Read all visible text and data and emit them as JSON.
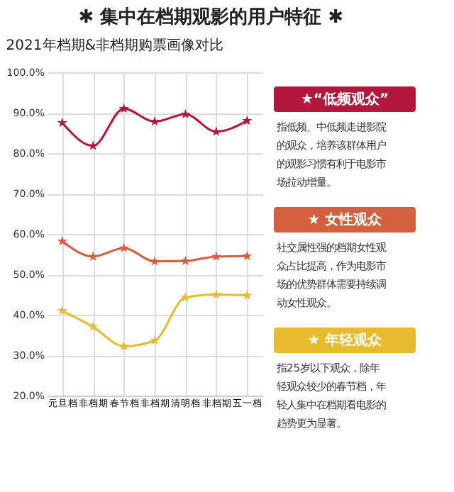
{
  "chart_data": {
    "type": "line",
    "title": "✱ 集中在档期观影的用户特征 ✱",
    "subtitle": "2021年档期&非档期购票画像对比",
    "categories": [
      "元旦档",
      "非档期",
      "春节档",
      "非档期",
      "清明档",
      "非档期",
      "五一档"
    ],
    "series": [
      {
        "name": "★“低频观众”",
        "color": "#b5173c",
        "values": [
          87.5,
          81.8,
          91.0,
          87.8,
          89.6,
          85.3,
          88.0
        ]
      },
      {
        "name": "★ 女性观众",
        "color": "#d2603c",
        "values": [
          58.2,
          54.4,
          56.5,
          53.2,
          53.3,
          54.4,
          54.5
        ]
      },
      {
        "name": "★ 年轻观众",
        "color": "#e8bb2c",
        "values": [
          41.0,
          37.0,
          32.2,
          33.6,
          44.3,
          45.0,
          44.8
        ]
      }
    ],
    "ylim": [
      20,
      100
    ],
    "yticks": [
      {
        "value": 20,
        "label": "20.0%"
      },
      {
        "value": 30,
        "label": "30.0%"
      },
      {
        "value": 40,
        "label": "40.0%"
      },
      {
        "value": 50,
        "label": "50.0%"
      },
      {
        "value": 60,
        "label": "60.0%"
      },
      {
        "value": 70,
        "label": "70.0%"
      },
      {
        "value": 80,
        "label": "80.0%"
      },
      {
        "value": 90,
        "label": "90.0%"
      },
      {
        "value": 100,
        "label": "100.0%"
      }
    ],
    "annotations": [
      "指低频、中低频走进影院的观众，培养该群体用户的观影习惯有利于电影市场拉动增量。",
      "社交属性强的档期女性观众占比提高，作为电影市场的优势群体需要持续调动女性观众。",
      "指25岁以下观众，除年轻观众较少的春节档，年轻人集中在档期看电影的趋势更为显著。"
    ],
    "grid": true,
    "legend": "right",
    "marker": "star",
    "line_style": "solid"
  }
}
